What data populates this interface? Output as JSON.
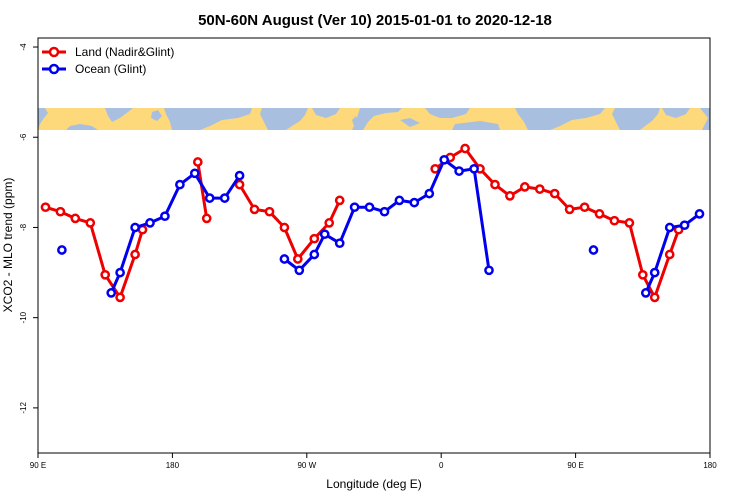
{
  "chart_data": {
    "type": "line",
    "title": "50N-60N August (Ver 10)   2015-01-01 to 2020-12-18",
    "xlabel": "Longitude (deg E)",
    "ylabel": "XCO2 - MLO trend (ppm)",
    "xlim": [
      90,
      540
    ],
    "ylim": [
      -13,
      -3.8
    ],
    "x_ticks": [
      {
        "value": 90,
        "label": "90 E"
      },
      {
        "value": 180,
        "label": "180"
      },
      {
        "value": 270,
        "label": "90 W"
      },
      {
        "value": 360,
        "label": "0"
      },
      {
        "value": 450,
        "label": "90 E"
      },
      {
        "value": 540,
        "label": "180"
      }
    ],
    "y_ticks": [
      {
        "value": -4,
        "label": "-4"
      },
      {
        "value": -6,
        "label": "-6"
      },
      {
        "value": -8,
        "label": "-8"
      },
      {
        "value": -10,
        "label": "-10"
      },
      {
        "value": -12,
        "label": "-12"
      }
    ],
    "legend_position": "top-left",
    "series": [
      {
        "name": "Land (Nadir&Glint)",
        "color": "#ee0000",
        "segments": [
          [
            [
              95,
              -7.55
            ],
            [
              105,
              -7.65
            ],
            [
              115,
              -7.8
            ],
            [
              125,
              -7.9
            ],
            [
              135,
              -9.05
            ],
            [
              145,
              -9.55
            ],
            [
              155,
              -8.6
            ],
            [
              160,
              -8.05
            ]
          ],
          [
            [
              197,
              -6.55
            ],
            [
              203,
              -7.8
            ]
          ],
          [
            [
              225,
              -7.05
            ],
            [
              235,
              -7.6
            ],
            [
              245,
              -7.65
            ],
            [
              255,
              -8.0
            ],
            [
              264,
              -8.7
            ],
            [
              275,
              -8.25
            ],
            [
              285,
              -7.9
            ],
            [
              292,
              -7.4
            ]
          ],
          [
            [
              356,
              -6.7
            ],
            [
              366,
              -6.45
            ],
            [
              376,
              -6.25
            ],
            [
              386,
              -6.7
            ],
            [
              396,
              -7.05
            ],
            [
              406,
              -7.3
            ],
            [
              416,
              -7.1
            ],
            [
              426,
              -7.15
            ],
            [
              436,
              -7.25
            ],
            [
              446,
              -7.6
            ],
            [
              456,
              -7.55
            ],
            [
              466,
              -7.7
            ],
            [
              476,
              -7.85
            ],
            [
              486,
              -7.9
            ],
            [
              495,
              -9.05
            ],
            [
              503,
              -9.55
            ],
            [
              513,
              -8.6
            ],
            [
              519,
              -8.05
            ]
          ]
        ]
      },
      {
        "name": "Ocean (Glint)",
        "color": "#0000ee",
        "segments": [
          [
            [
              106,
              -8.5
            ]
          ],
          [
            [
              139,
              -9.45
            ],
            [
              145,
              -9.0
            ],
            [
              155,
              -8.0
            ],
            [
              165,
              -7.9
            ],
            [
              175,
              -7.75
            ],
            [
              185,
              -7.05
            ],
            [
              195,
              -6.8
            ],
            [
              205,
              -7.35
            ],
            [
              215,
              -7.35
            ],
            [
              225,
              -6.85
            ]
          ],
          [
            [
              255,
              -8.7
            ],
            [
              265,
              -8.95
            ],
            [
              275,
              -8.6
            ],
            [
              282,
              -8.15
            ],
            [
              292,
              -8.35
            ],
            [
              302,
              -7.55
            ],
            [
              312,
              -7.55
            ],
            [
              322,
              -7.65
            ],
            [
              332,
              -7.4
            ],
            [
              342,
              -7.45
            ],
            [
              352,
              -7.25
            ],
            [
              362,
              -6.5
            ],
            [
              372,
              -6.75
            ],
            [
              382,
              -6.7
            ],
            [
              392,
              -8.95
            ]
          ],
          [
            [
              462,
              -8.5
            ]
          ],
          [
            [
              497,
              -9.45
            ],
            [
              503,
              -9.0
            ],
            [
              513,
              -8.0
            ],
            [
              523,
              -7.95
            ],
            [
              533,
              -7.7
            ]
          ]
        ]
      }
    ]
  }
}
